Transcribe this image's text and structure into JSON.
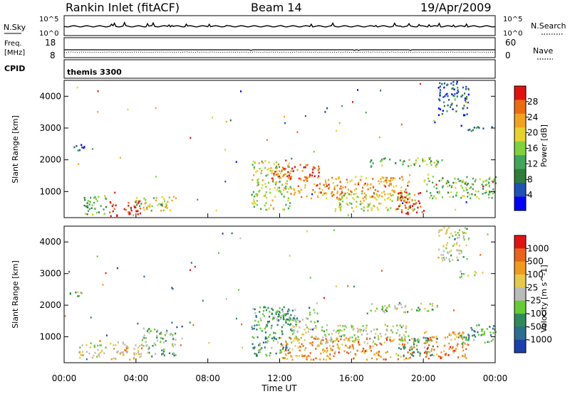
{
  "header": {
    "station": "Rankin Inlet (fitACF)",
    "beam": "Beam 14",
    "date": "19/Apr/2009"
  },
  "panels": {
    "nsky_label": "N.Sky",
    "nsearch_label": "N.Search",
    "nsky_ticks": [
      "10^5",
      "10^0"
    ],
    "nsearch_ticks": [
      "10^5",
      "10^0"
    ],
    "freq_label_1": "Freq.",
    "freq_label_2": "[MHz]",
    "freq_ticks": [
      "18",
      "8"
    ],
    "nave_label": "Nave",
    "nave_ticks": [
      "60",
      "0"
    ],
    "cpid_label": "CPID",
    "cpid_value": "themis 3300"
  },
  "colors": {
    "power_scale": [
      "#0000ff",
      "#1e52b8",
      "#2e7d3a",
      "#3fa65a",
      "#7fd23b",
      "#e5d32b",
      "#f4a21e",
      "#ee6a10",
      "#e41010"
    ],
    "velocity_scale": [
      "#1c3fae",
      "#2a6e8f",
      "#2e8a5a",
      "#66cc33",
      "#bbbbbb",
      "#e6c84a",
      "#f29a1c",
      "#e8641a",
      "#e01414"
    ]
  },
  "chart_data": [
    {
      "type": "heatmap",
      "name": "power",
      "ylabel": "Slant Range [km]",
      "x_ticks": [
        "00:00",
        "04:00",
        "08:00",
        "12:00",
        "16:00",
        "20:00",
        "00:00"
      ],
      "xlim_hours": [
        0,
        24
      ],
      "ylim_km": [
        180,
        4500
      ],
      "y_ticks": [
        1000,
        2000,
        3000,
        4000
      ],
      "colorbar": {
        "label": "Power [dB]",
        "ticks": [
          "28",
          "24",
          "20",
          "16",
          "12",
          "8",
          "4"
        ],
        "range_db": [
          0,
          32
        ]
      },
      "echo_regions": [
        {
          "t0": 0.3,
          "t1": 1.3,
          "r0": 2300,
          "r1": 2500,
          "level": 0.2
        },
        {
          "t0": 0.8,
          "t1": 2.3,
          "r0": 300,
          "r1": 900,
          "level": 0.4
        },
        {
          "t0": 2.5,
          "t1": 4.3,
          "r0": 250,
          "r1": 750,
          "level": 0.95
        },
        {
          "t0": 3.9,
          "t1": 6.2,
          "r0": 400,
          "r1": 900,
          "level": 0.55
        },
        {
          "t0": 10.4,
          "t1": 12.6,
          "r0": 450,
          "r1": 2000,
          "level": 0.55
        },
        {
          "t0": 11.5,
          "t1": 14.2,
          "r0": 1400,
          "r1": 1900,
          "level": 0.85
        },
        {
          "t0": 12.5,
          "t1": 19.2,
          "r0": 800,
          "r1": 1500,
          "level": 0.75
        },
        {
          "t0": 15.0,
          "t1": 19.5,
          "r0": 400,
          "r1": 1000,
          "level": 0.55
        },
        {
          "t0": 17.0,
          "t1": 20.8,
          "r0": 1800,
          "r1": 2100,
          "level": 0.45
        },
        {
          "t0": 18.5,
          "t1": 20.0,
          "r0": 300,
          "r1": 1000,
          "level": 0.95
        },
        {
          "t0": 20.0,
          "t1": 24.0,
          "r0": 800,
          "r1": 1500,
          "level": 0.45
        },
        {
          "t0": 20.8,
          "t1": 22.5,
          "r0": 3400,
          "r1": 4500,
          "level": 0.2
        },
        {
          "t0": 22.0,
          "t1": 23.3,
          "r0": 2900,
          "r1": 3100,
          "level": 0.2
        },
        {
          "t0": 14.3,
          "t1": 14.6,
          "r0": 3500,
          "r1": 3700,
          "level": 0.2
        }
      ]
    },
    {
      "type": "heatmap",
      "name": "velocity",
      "ylabel": "Slant Range [km]",
      "xlabel": "Time UT",
      "x_ticks": [
        "00:00",
        "04:00",
        "08:00",
        "12:00",
        "16:00",
        "20:00",
        "00:00"
      ],
      "xlim_hours": [
        0,
        24
      ],
      "ylim_km": [
        180,
        4500
      ],
      "y_ticks": [
        1000,
        2000,
        3000,
        4000
      ],
      "colorbar": {
        "label": "Velocity [m s^-1]",
        "ticks": [
          "1000",
          "500",
          "100",
          "25",
          "-25",
          "-100",
          "-500",
          "-1000"
        ]
      },
      "echo_regions": [
        {
          "t0": 0.3,
          "t1": 1.3,
          "r0": 2300,
          "r1": 2500,
          "level": 0.45
        },
        {
          "t0": 0.8,
          "t1": 2.3,
          "r0": 300,
          "r1": 900,
          "level": 0.55
        },
        {
          "t0": 2.5,
          "t1": 4.3,
          "r0": 250,
          "r1": 900,
          "level": 0.65
        },
        {
          "t0": 4.3,
          "t1": 6.2,
          "r0": 400,
          "r1": 1300,
          "level": 0.4
        },
        {
          "t0": 10.4,
          "t1": 12.6,
          "r0": 400,
          "r1": 2000,
          "level": 0.3
        },
        {
          "t0": 11.5,
          "t1": 14.2,
          "r0": 1400,
          "r1": 1900,
          "level": 0.35
        },
        {
          "t0": 12.5,
          "t1": 19.2,
          "r0": 800,
          "r1": 1400,
          "level": 0.48
        },
        {
          "t0": 12.0,
          "t1": 19.5,
          "r0": 300,
          "r1": 1000,
          "level": 0.72
        },
        {
          "t0": 17.0,
          "t1": 20.8,
          "r0": 1800,
          "r1": 2100,
          "level": 0.48
        },
        {
          "t0": 18.5,
          "t1": 20.5,
          "r0": 400,
          "r1": 1000,
          "level": 0.3
        },
        {
          "t0": 20.0,
          "t1": 22.5,
          "r0": 300,
          "r1": 1200,
          "level": 0.75
        },
        {
          "t0": 22.0,
          "t1": 24.0,
          "r0": 800,
          "r1": 1400,
          "level": 0.3
        },
        {
          "t0": 20.8,
          "t1": 22.5,
          "r0": 3400,
          "r1": 4500,
          "level": 0.5
        },
        {
          "t0": 22.0,
          "t1": 23.3,
          "r0": 2900,
          "r1": 3100,
          "level": 0.48
        }
      ]
    }
  ]
}
